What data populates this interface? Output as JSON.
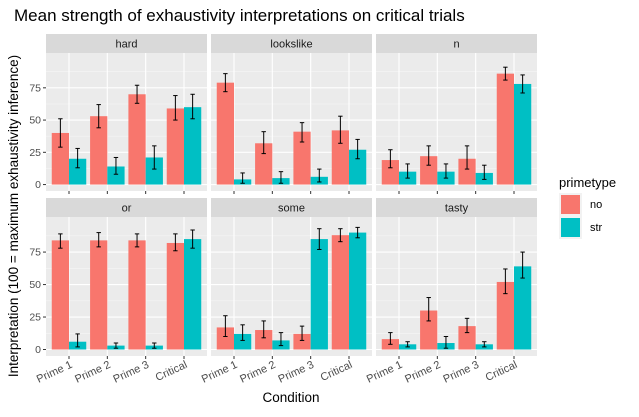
{
  "chart_data": {
    "type": "bar",
    "title": "Mean strength of exhaustivity interpretations on critical trials",
    "xlabel": "Condition",
    "ylabel": "Interpretation (100 = maximum exhaustivity inference)",
    "ylim": [
      -5,
      102
    ],
    "yticks": [
      0,
      25,
      50,
      75
    ],
    "grid": true,
    "legend": {
      "title": "primetype",
      "position": "right",
      "entries": [
        {
          "name": "no",
          "color": "#F8766D"
        },
        {
          "name": "str",
          "color": "#00BFC4"
        }
      ]
    },
    "categories": [
      "Prime 1",
      "Prime 2",
      "Prime 3",
      "Critical"
    ],
    "panels": [
      {
        "name": "hard",
        "series": [
          {
            "name": "no",
            "values": [
              40,
              53,
              70,
              59
            ],
            "lower": [
              29,
              44,
              63,
              50
            ],
            "upper": [
              51,
              62,
              77,
              69
            ]
          },
          {
            "name": "str",
            "values": [
              20,
              14,
              21,
              60
            ],
            "lower": [
              13,
              8,
              12,
              51
            ],
            "upper": [
              28,
              21,
              30,
              70
            ]
          }
        ]
      },
      {
        "name": "lookslike",
        "series": [
          {
            "name": "no",
            "values": [
              79,
              32,
              41,
              42
            ],
            "lower": [
              72,
              24,
              33,
              32
            ],
            "upper": [
              86,
              41,
              48,
              53
            ]
          },
          {
            "name": "str",
            "values": [
              4,
              5,
              6,
              27
            ],
            "lower": [
              1,
              1,
              2,
              20
            ],
            "upper": [
              9,
              10,
              12,
              35
            ]
          }
        ]
      },
      {
        "name": "n",
        "series": [
          {
            "name": "no",
            "values": [
              19,
              22,
              20,
              86
            ],
            "lower": [
              13,
              15,
              12,
              81
            ],
            "upper": [
              27,
              30,
              30,
              91
            ]
          },
          {
            "name": "str",
            "values": [
              10,
              10,
              9,
              78
            ],
            "lower": [
              5,
              5,
              4,
              71
            ],
            "upper": [
              16,
              16,
              15,
              85
            ]
          }
        ]
      },
      {
        "name": "or",
        "series": [
          {
            "name": "no",
            "values": [
              84,
              84,
              84,
              82
            ],
            "lower": [
              78,
              79,
              79,
              76
            ],
            "upper": [
              89,
              90,
              89,
              89
            ]
          },
          {
            "name": "str",
            "values": [
              6,
              3,
              3,
              85
            ],
            "lower": [
              2,
              1,
              1,
              78
            ],
            "upper": [
              12,
              5,
              5,
              92
            ]
          }
        ]
      },
      {
        "name": "some",
        "series": [
          {
            "name": "no",
            "values": [
              17,
              15,
              12,
              88
            ],
            "lower": [
              10,
              9,
              7,
              83
            ],
            "upper": [
              26,
              22,
              18,
              93
            ]
          },
          {
            "name": "str",
            "values": [
              12,
              7,
              85,
              90
            ],
            "lower": [
              7,
              3,
              77,
              86
            ],
            "upper": [
              19,
              13,
              93,
              94
            ]
          }
        ]
      },
      {
        "name": "tasty",
        "series": [
          {
            "name": "no",
            "values": [
              8,
              30,
              18,
              52
            ],
            "lower": [
              4,
              22,
              13,
              43
            ],
            "upper": [
              13,
              40,
              24,
              62
            ]
          },
          {
            "name": "str",
            "values": [
              4,
              5,
              4,
              64
            ],
            "lower": [
              2,
              1,
              2,
              55
            ],
            "upper": [
              6,
              10,
              6,
              75
            ]
          }
        ]
      }
    ]
  }
}
